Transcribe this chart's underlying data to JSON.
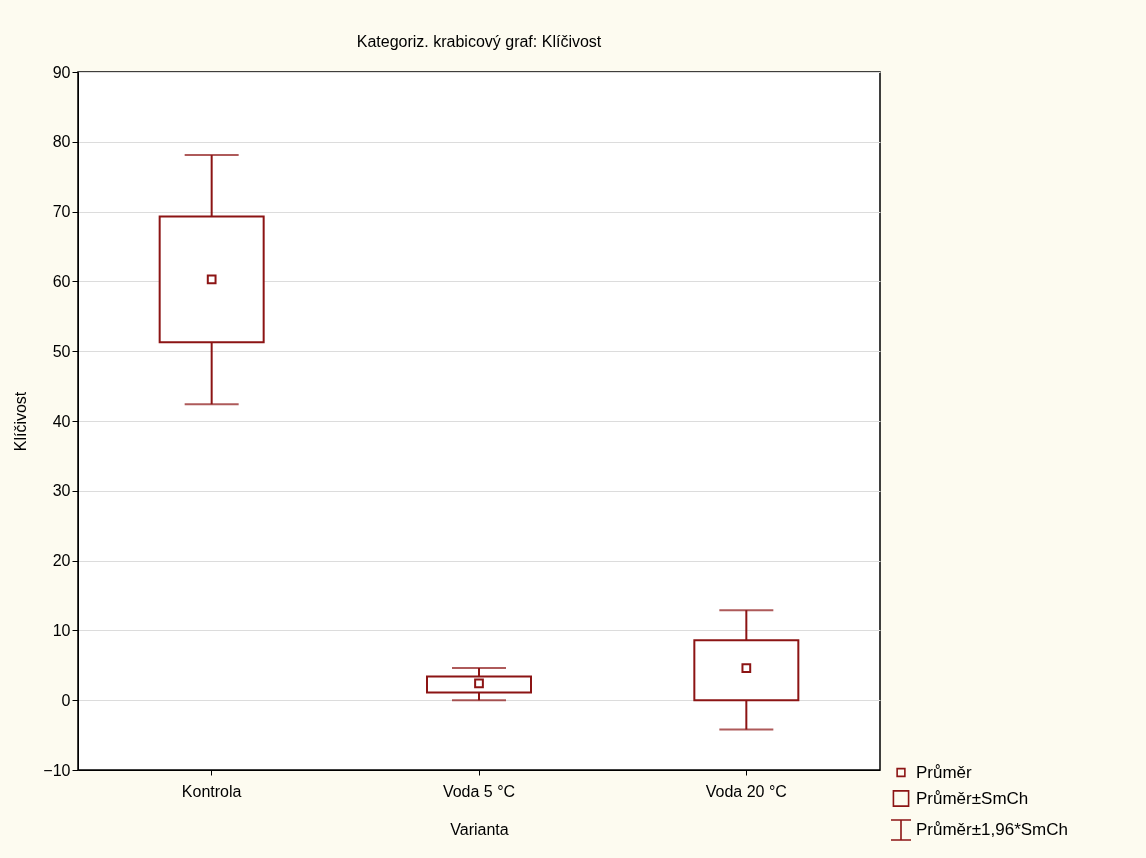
{
  "chart_data": {
    "type": "box",
    "title": "Kategoriz. krabicový graf: Klíčivost",
    "xlabel": "Varianta",
    "ylabel": "Klíčivost",
    "categories": [
      "Kontrola",
      "Voda 5 °C",
      "Voda 20 °C"
    ],
    "series": [
      {
        "name": "Průměr",
        "color": "#8c1414",
        "boxes": [
          {
            "low": 42.4,
            "q1": 51.3,
            "median": 60.3,
            "q3": 69.3,
            "high": 78.1
          },
          {
            "low": 0.0,
            "q1": 1.1,
            "median": 2.4,
            "q3": 3.4,
            "high": 4.6
          },
          {
            "low": -4.2,
            "q1": 0.0,
            "median": 4.6,
            "q3": 8.6,
            "high": 12.9
          }
        ]
      }
    ],
    "annotations": [
      "Průměr±SmCh",
      "Průměr±1,96*SmCh"
    ],
    "ylim": [
      -10,
      90
    ],
    "yticks": [
      -10,
      0,
      10,
      20,
      30,
      40,
      50,
      60,
      70,
      80,
      90
    ],
    "grid": "y",
    "legend": "bottom right",
    "marker": "square"
  }
}
